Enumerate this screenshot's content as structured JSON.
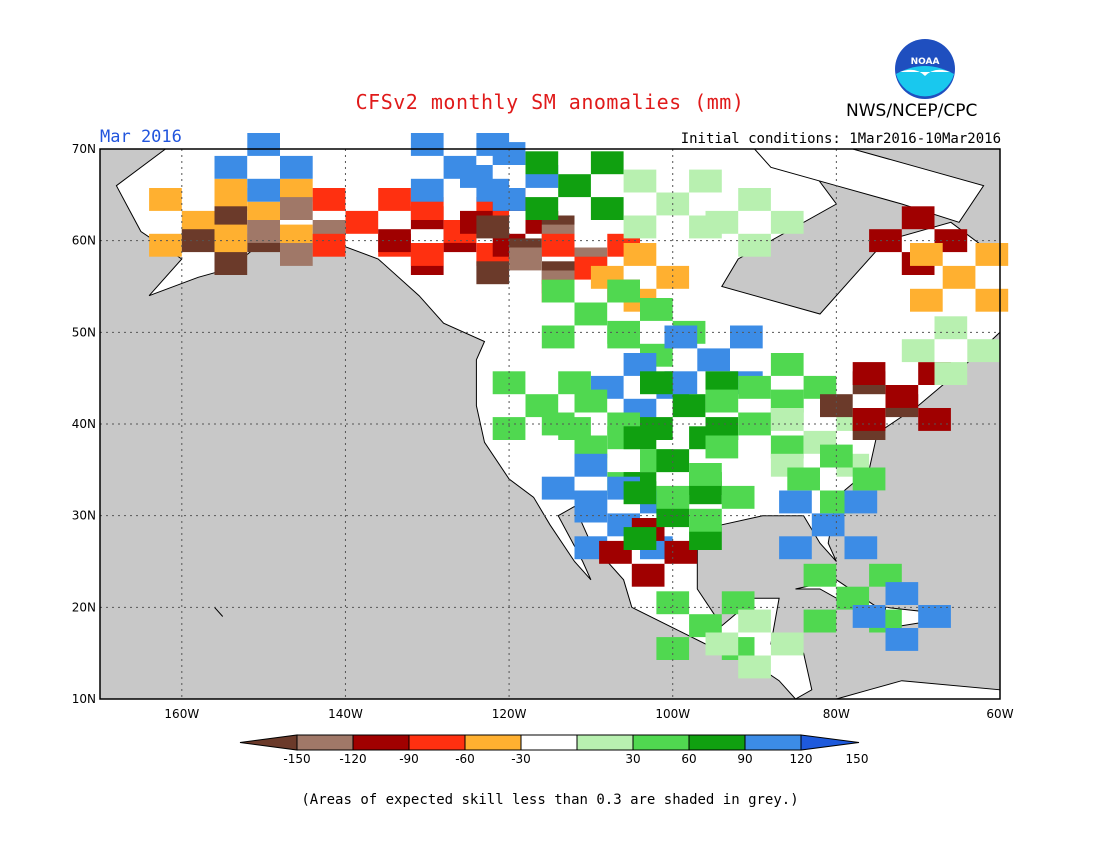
{
  "header": {
    "title": "CFSv2 monthly SM anomalies (mm)",
    "agency": "NWS/NCEP/CPC",
    "logo_text": "NOAA",
    "valid_month": "Mar 2016",
    "initial_conditions": "Initial conditions: 1Mar2016-10Mar2016"
  },
  "map": {
    "lon_labels": [
      "160W",
      "140W",
      "120W",
      "100W",
      "80W",
      "60W"
    ],
    "lat_labels": [
      "70N",
      "60N",
      "50N",
      "40N",
      "30N",
      "20N",
      "10N"
    ],
    "lon_range": [
      -170,
      -60
    ],
    "lat_range": [
      10,
      70
    ],
    "masked_color": "#c8c8c8",
    "land_color": "#ffffff",
    "ocean_color": "#c8c8c8"
  },
  "colorbar": {
    "tick_labels": [
      "-150",
      "-120",
      "-90",
      "-60",
      "-30",
      "30",
      "60",
      "90",
      "120",
      "150"
    ],
    "colors": [
      "#6b3a2a",
      "#a07868",
      "#a00000",
      "#ff3010",
      "#ffb030",
      "#ffffff",
      "#b8f0b0",
      "#50d850",
      "#10a010",
      "#3c8ce6",
      "#1e5adc"
    ]
  },
  "footnote": "(Areas of expected skill less than 0.3 are shaded in grey.)",
  "anomaly_patches": [
    {
      "lon": -158,
      "lat": 62,
      "cls": "-30"
    },
    {
      "lon": -154,
      "lat": 60,
      "cls": "-150"
    },
    {
      "lon": -150,
      "lat": 63,
      "cls": "-30"
    },
    {
      "lon": -146,
      "lat": 61,
      "cls": "-120"
    },
    {
      "lon": -138,
      "lat": 62,
      "cls": "-60"
    },
    {
      "lon": -130,
      "lat": 60,
      "cls": "-90"
    },
    {
      "lon": -126,
      "lat": 61,
      "cls": "-60"
    },
    {
      "lon": -120,
      "lat": 62,
      "cls": "-90"
    },
    {
      "lon": -118,
      "lat": 59,
      "cls": "-150"
    },
    {
      "lon": -114,
      "lat": 58,
      "cls": "-120"
    },
    {
      "lon": -110,
      "lat": 57,
      "cls": "-60"
    },
    {
      "lon": -104,
      "lat": 56,
      "cls": "-30"
    },
    {
      "lon": -126,
      "lat": 68,
      "cls": "150"
    },
    {
      "lon": -120,
      "lat": 67,
      "cls": "150"
    },
    {
      "lon": -112,
      "lat": 66,
      "cls": "120"
    },
    {
      "lon": -150,
      "lat": 68,
      "cls": "150"
    },
    {
      "lon": -100,
      "lat": 64,
      "cls": "60"
    },
    {
      "lon": -90,
      "lat": 62,
      "cls": "60"
    },
    {
      "lon": -110,
      "lat": 52,
      "cls": "90"
    },
    {
      "lon": -102,
      "lat": 50,
      "cls": "90"
    },
    {
      "lon": -95,
      "lat": 47,
      "cls": "150"
    },
    {
      "lon": -104,
      "lat": 44,
      "cls": "150"
    },
    {
      "lon": -98,
      "lat": 42,
      "cls": "120"
    },
    {
      "lon": -110,
      "lat": 40,
      "cls": "90"
    },
    {
      "lon": -116,
      "lat": 42,
      "cls": "90"
    },
    {
      "lon": -106,
      "lat": 36,
      "cls": "90"
    },
    {
      "lon": -100,
      "lat": 36,
      "cls": "120"
    },
    {
      "lon": -110,
      "lat": 33,
      "cls": "150"
    },
    {
      "lon": -106,
      "lat": 29,
      "cls": "150"
    },
    {
      "lon": -103,
      "lat": 26,
      "cls": "-90"
    },
    {
      "lon": -100,
      "lat": 30,
      "cls": "120"
    },
    {
      "lon": -96,
      "lat": 32,
      "cls": "90"
    },
    {
      "lon": -90,
      "lat": 40,
      "cls": "90"
    },
    {
      "lon": -86,
      "lat": 44,
      "cls": "90"
    },
    {
      "lon": -82,
      "lat": 38,
      "cls": "60"
    },
    {
      "lon": -80,
      "lat": 34,
      "cls": "90"
    },
    {
      "lon": -81,
      "lat": 29,
      "cls": "150"
    },
    {
      "lon": -76,
      "lat": 42,
      "cls": "-150"
    },
    {
      "lon": -72,
      "lat": 43,
      "cls": "-90"
    },
    {
      "lon": -70,
      "lat": 60,
      "cls": "-90"
    },
    {
      "lon": -65,
      "lat": 56,
      "cls": "-30"
    },
    {
      "lon": -66,
      "lat": 48,
      "cls": "60"
    },
    {
      "lon": -96,
      "lat": 18,
      "cls": "90"
    },
    {
      "lon": -90,
      "lat": 16,
      "cls": "60"
    },
    {
      "lon": -78,
      "lat": 21,
      "cls": "90"
    },
    {
      "lon": -72,
      "lat": 19,
      "cls": "150"
    }
  ]
}
